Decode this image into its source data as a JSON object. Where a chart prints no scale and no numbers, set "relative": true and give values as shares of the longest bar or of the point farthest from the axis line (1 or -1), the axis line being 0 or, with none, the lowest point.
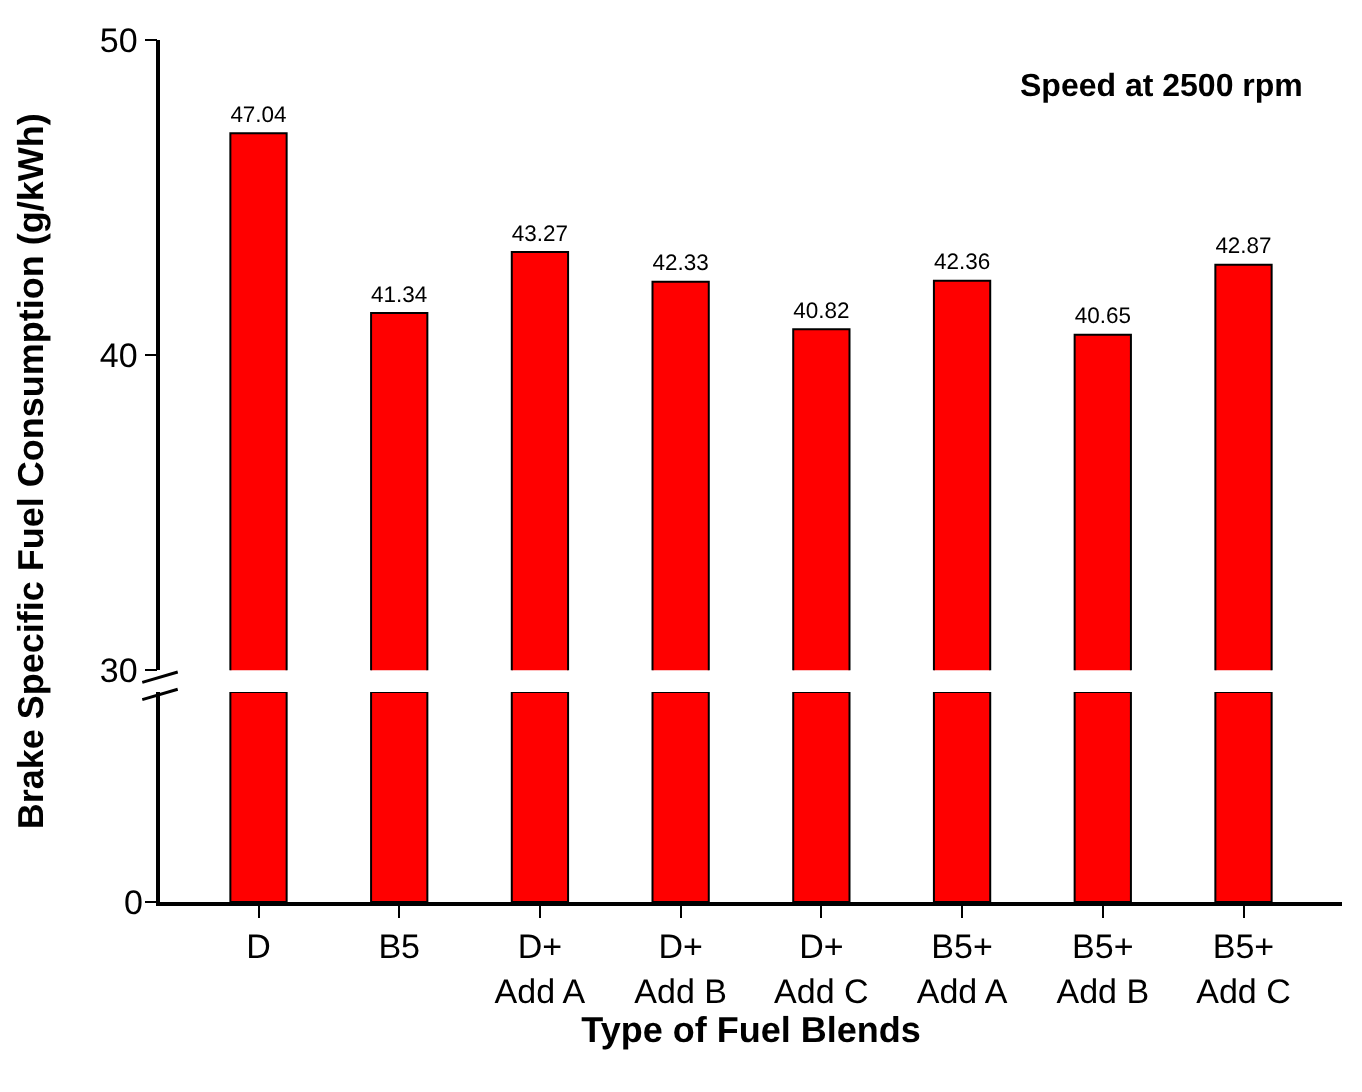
{
  "chart_data": [
    {
      "type": "bar",
      "annotations": [
        "Speed at 2500 rpm"
      ],
      "categories": [
        null,
        null,
        null,
        null,
        null,
        null,
        null,
        null
      ],
      "values": [
        47.04,
        41.34,
        43.27,
        42.33,
        40.82,
        42.36,
        40.65,
        42.87
      ],
      "color": "#ff0000",
      "ylim": [
        30,
        50
      ],
      "yticks": [
        30,
        40,
        50
      ],
      "data_labels": true,
      "tick_labels": "y",
      "grid": false,
      "legend": false
    },
    {
      "type": "bar",
      "xlabel": "Type of Fuel Blends",
      "ylabel": "Brake Specific Fuel Consumption (g/kWh)",
      "categories": [
        "D",
        "B5",
        "D+\nAdd A",
        "D+\nAdd B",
        "D+\nAdd C",
        "B5+\nAdd A",
        "B5+\nAdd B",
        "B5+\nAdd C"
      ],
      "values": [
        1,
        1,
        1,
        1,
        1,
        1,
        1,
        1
      ],
      "relative": true,
      "annotations": [
        "0"
      ],
      "color": "#ff0000",
      "grid": false,
      "legend": false
    }
  ]
}
